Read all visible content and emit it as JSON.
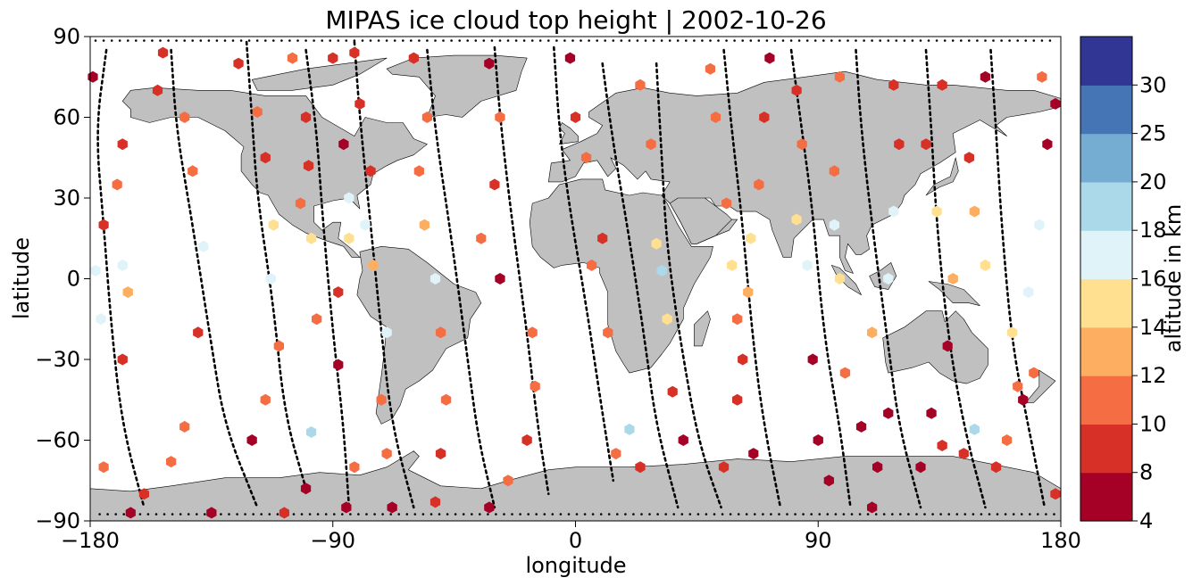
{
  "chart_data": {
    "type": "scatter",
    "title": "MIPAS ice cloud top height | 2002-10-26",
    "xlabel": "longitude",
    "ylabel": "latitude",
    "xlim": [
      -180,
      180
    ],
    "ylim": [
      -90,
      90
    ],
    "xticks": [
      -180,
      -90,
      0,
      90,
      180
    ],
    "yticks": [
      -90,
      -60,
      -30,
      0,
      30,
      60,
      90
    ],
    "grid": false,
    "colorbar": {
      "label": "altitude in km",
      "position": "right",
      "bounds": [
        4,
        8,
        10,
        12,
        14,
        16,
        18,
        20,
        25,
        30
      ],
      "tick_labels": [
        "4",
        "8",
        "10",
        "12",
        "14",
        "16",
        "18",
        "20",
        "25",
        "30"
      ],
      "colors": [
        "#a50026",
        "#d73027",
        "#f46d43",
        "#fdae61",
        "#fee090",
        "#e0f3f8",
        "#abd9e9",
        "#74add1",
        "#4575b4",
        "#313695"
      ]
    },
    "land_color": "#c0c0c0",
    "track_color": "#000000",
    "tracks": [
      {
        "points": [
          [
            -174,
            85
          ],
          [
            -178,
            55
          ],
          [
            -175,
            20
          ],
          [
            -172,
            -20
          ],
          [
            -168,
            -55
          ],
          [
            -160,
            -85
          ]
        ]
      },
      {
        "points": [
          [
            -150,
            85
          ],
          [
            -148,
            55
          ],
          [
            -142,
            20
          ],
          [
            -135,
            -25
          ],
          [
            -130,
            -55
          ],
          [
            -118,
            -85
          ]
        ]
      },
      {
        "points": [
          [
            -122,
            88
          ],
          [
            -120,
            60
          ],
          [
            -118,
            30
          ],
          [
            -112,
            -10
          ],
          [
            -108,
            -50
          ],
          [
            -100,
            -78
          ]
        ]
      },
      {
        "points": [
          [
            -100,
            85
          ],
          [
            -96,
            55
          ],
          [
            -94,
            25
          ],
          [
            -90,
            -20
          ],
          [
            -86,
            -55
          ],
          [
            -84,
            -85
          ]
        ]
      },
      {
        "points": [
          [
            -82,
            88
          ],
          [
            -80,
            60
          ],
          [
            -76,
            20
          ],
          [
            -72,
            -20
          ],
          [
            -68,
            -55
          ],
          [
            -60,
            -85
          ]
        ]
      },
      {
        "points": [
          [
            -55,
            85
          ],
          [
            -52,
            55
          ],
          [
            -46,
            15
          ],
          [
            -40,
            -30
          ],
          [
            -36,
            -60
          ],
          [
            -30,
            -85
          ]
        ]
      },
      {
        "points": [
          [
            -30,
            86
          ],
          [
            -28,
            60
          ],
          [
            -24,
            25
          ],
          [
            -18,
            -20
          ],
          [
            -14,
            -55
          ],
          [
            -10,
            -80
          ]
        ]
      },
      {
        "points": [
          [
            -8,
            86
          ],
          [
            -6,
            55
          ],
          [
            -2,
            25
          ],
          [
            4,
            -10
          ],
          [
            10,
            -50
          ],
          [
            14,
            -75
          ]
        ]
      },
      {
        "points": [
          [
            10,
            80
          ],
          [
            14,
            50
          ],
          [
            20,
            15
          ],
          [
            26,
            -25
          ],
          [
            30,
            -55
          ],
          [
            38,
            -85
          ]
        ]
      },
      {
        "points": [
          [
            30,
            80
          ],
          [
            32,
            45
          ],
          [
            34,
            10
          ],
          [
            40,
            -30
          ],
          [
            46,
            -62
          ],
          [
            54,
            -85
          ]
        ]
      },
      {
        "points": [
          [
            55,
            85
          ],
          [
            58,
            55
          ],
          [
            62,
            20
          ],
          [
            66,
            -25
          ],
          [
            70,
            -55
          ],
          [
            76,
            -85
          ]
        ]
      },
      {
        "points": [
          [
            80,
            85
          ],
          [
            84,
            55
          ],
          [
            88,
            25
          ],
          [
            92,
            -20
          ],
          [
            98,
            -55
          ],
          [
            102,
            -85
          ]
        ]
      },
      {
        "points": [
          [
            104,
            85
          ],
          [
            106,
            55
          ],
          [
            110,
            20
          ],
          [
            116,
            -25
          ],
          [
            120,
            -55
          ],
          [
            128,
            -85
          ]
        ]
      },
      {
        "points": [
          [
            130,
            85
          ],
          [
            132,
            55
          ],
          [
            134,
            20
          ],
          [
            138,
            -20
          ],
          [
            144,
            -55
          ],
          [
            152,
            -85
          ]
        ]
      },
      {
        "points": [
          [
            154,
            85
          ],
          [
            156,
            55
          ],
          [
            158,
            20
          ],
          [
            162,
            -25
          ],
          [
            168,
            -55
          ],
          [
            174,
            -85
          ]
        ]
      }
    ],
    "points": [
      {
        "x": -179,
        "y": 75,
        "v": 6
      },
      {
        "x": -168,
        "y": 50,
        "v": 9
      },
      {
        "x": -170,
        "y": 35,
        "v": 11
      },
      {
        "x": -175,
        "y": 20,
        "v": 9
      },
      {
        "x": -178,
        "y": 3,
        "v": 17
      },
      {
        "x": -176,
        "y": -15,
        "v": 17
      },
      {
        "x": -166,
        "y": -5,
        "v": 13
      },
      {
        "x": -168,
        "y": 5,
        "v": 17
      },
      {
        "x": -168,
        "y": -30,
        "v": 9
      },
      {
        "x": -175,
        "y": -70,
        "v": 11
      },
      {
        "x": -165,
        "y": -87,
        "v": 6
      },
      {
        "x": -153,
        "y": 84,
        "v": 9
      },
      {
        "x": -155,
        "y": 70,
        "v": 9
      },
      {
        "x": -160,
        "y": -80,
        "v": 9
      },
      {
        "x": -145,
        "y": 60,
        "v": 11
      },
      {
        "x": -142,
        "y": 40,
        "v": 11
      },
      {
        "x": -138,
        "y": 12,
        "v": 17
      },
      {
        "x": -140,
        "y": -20,
        "v": 9
      },
      {
        "x": -145,
        "y": -55,
        "v": 11
      },
      {
        "x": -150,
        "y": -68,
        "v": 11
      },
      {
        "x": -135,
        "y": -87,
        "v": 6
      },
      {
        "x": -125,
        "y": 80,
        "v": 9
      },
      {
        "x": -118,
        "y": 62,
        "v": 11
      },
      {
        "x": -115,
        "y": 45,
        "v": 9
      },
      {
        "x": -112,
        "y": 20,
        "v": 15
      },
      {
        "x": -113,
        "y": 0,
        "v": 17
      },
      {
        "x": -110,
        "y": -25,
        "v": 11
      },
      {
        "x": -115,
        "y": -45,
        "v": 11
      },
      {
        "x": -120,
        "y": -60,
        "v": 6
      },
      {
        "x": -108,
        "y": -87,
        "v": 9
      },
      {
        "x": -105,
        "y": 82,
        "v": 11
      },
      {
        "x": -100,
        "y": 60,
        "v": 9
      },
      {
        "x": -99,
        "y": 42,
        "v": 9
      },
      {
        "x": -102,
        "y": 28,
        "v": 11
      },
      {
        "x": -98,
        "y": 15,
        "v": 15
      },
      {
        "x": -96,
        "y": -15,
        "v": 11
      },
      {
        "x": -98,
        "y": -57,
        "v": 19
      },
      {
        "x": -100,
        "y": -78,
        "v": 6
      },
      {
        "x": -90,
        "y": 82,
        "v": 9
      },
      {
        "x": -86,
        "y": 50,
        "v": 6
      },
      {
        "x": -84,
        "y": 30,
        "v": 17
      },
      {
        "x": -84,
        "y": 15,
        "v": 15
      },
      {
        "x": -88,
        "y": -5,
        "v": 9
      },
      {
        "x": -88,
        "y": -32,
        "v": 6
      },
      {
        "x": -82,
        "y": -70,
        "v": 11
      },
      {
        "x": -85,
        "y": -85,
        "v": 6
      },
      {
        "x": -82,
        "y": 84,
        "v": 9
      },
      {
        "x": -80,
        "y": 65,
        "v": 9
      },
      {
        "x": -76,
        "y": 40,
        "v": 9
      },
      {
        "x": -78,
        "y": 20,
        "v": 17
      },
      {
        "x": -75,
        "y": 5,
        "v": 13
      },
      {
        "x": -70,
        "y": -20,
        "v": 17
      },
      {
        "x": -72,
        "y": -45,
        "v": 11
      },
      {
        "x": -70,
        "y": -65,
        "v": 11
      },
      {
        "x": -68,
        "y": -85,
        "v": 6
      },
      {
        "x": -60,
        "y": 82,
        "v": 9
      },
      {
        "x": -55,
        "y": 60,
        "v": 11
      },
      {
        "x": -58,
        "y": 40,
        "v": 11
      },
      {
        "x": -56,
        "y": 20,
        "v": 13
      },
      {
        "x": -52,
        "y": 0,
        "v": 17
      },
      {
        "x": -50,
        "y": -20,
        "v": 11
      },
      {
        "x": -48,
        "y": -45,
        "v": 11
      },
      {
        "x": -50,
        "y": -65,
        "v": 9
      },
      {
        "x": -52,
        "y": -83,
        "v": 9
      },
      {
        "x": -32,
        "y": 80,
        "v": 6
      },
      {
        "x": -28,
        "y": 60,
        "v": 11
      },
      {
        "x": -30,
        "y": 35,
        "v": 9
      },
      {
        "x": -35,
        "y": 15,
        "v": 11
      },
      {
        "x": -28,
        "y": 0,
        "v": 6
      },
      {
        "x": -16,
        "y": -20,
        "v": 11
      },
      {
        "x": -15,
        "y": -40,
        "v": 11
      },
      {
        "x": -18,
        "y": -60,
        "v": 9
      },
      {
        "x": -25,
        "y": -75,
        "v": 11
      },
      {
        "x": -32,
        "y": -85,
        "v": 6
      },
      {
        "x": -2,
        "y": 82,
        "v": 6
      },
      {
        "x": 0,
        "y": 60,
        "v": 9
      },
      {
        "x": 4,
        "y": 45,
        "v": 11
      },
      {
        "x": 10,
        "y": 15,
        "v": 9
      },
      {
        "x": 6,
        "y": 5,
        "v": 11
      },
      {
        "x": 12,
        "y": -20,
        "v": 11
      },
      {
        "x": 15,
        "y": -65,
        "v": 11
      },
      {
        "x": 20,
        "y": -56,
        "v": 19
      },
      {
        "x": 24,
        "y": -70,
        "v": 9
      },
      {
        "x": 24,
        "y": 72,
        "v": 11
      },
      {
        "x": 28,
        "y": 50,
        "v": 11
      },
      {
        "x": 30,
        "y": 13,
        "v": 15
      },
      {
        "x": 32,
        "y": 3,
        "v": 18
      },
      {
        "x": 34,
        "y": -15,
        "v": 15
      },
      {
        "x": 36,
        "y": -42,
        "v": 9
      },
      {
        "x": 40,
        "y": -60,
        "v": 6
      },
      {
        "x": 50,
        "y": 78,
        "v": 11
      },
      {
        "x": 52,
        "y": 60,
        "v": 11
      },
      {
        "x": 56,
        "y": 28,
        "v": 11
      },
      {
        "x": 58,
        "y": 5,
        "v": 15
      },
      {
        "x": 60,
        "y": -15,
        "v": 11
      },
      {
        "x": 60,
        "y": -45,
        "v": 9
      },
      {
        "x": 55,
        "y": -70,
        "v": 9
      },
      {
        "x": 72,
        "y": 82,
        "v": 6
      },
      {
        "x": 70,
        "y": 60,
        "v": 9
      },
      {
        "x": 68,
        "y": 35,
        "v": 11
      },
      {
        "x": 65,
        "y": 15,
        "v": 15
      },
      {
        "x": 64,
        "y": -5,
        "v": 13
      },
      {
        "x": 62,
        "y": -30,
        "v": 9
      },
      {
        "x": 66,
        "y": -65,
        "v": 6
      },
      {
        "x": 82,
        "y": 70,
        "v": 9
      },
      {
        "x": 84,
        "y": 50,
        "v": 11
      },
      {
        "x": 82,
        "y": 22,
        "v": 15
      },
      {
        "x": 86,
        "y": 5,
        "v": 17
      },
      {
        "x": 88,
        "y": -30,
        "v": 6
      },
      {
        "x": 90,
        "y": -60,
        "v": 6
      },
      {
        "x": 94,
        "y": -75,
        "v": 6
      },
      {
        "x": 98,
        "y": 75,
        "v": 11
      },
      {
        "x": 96,
        "y": 40,
        "v": 11
      },
      {
        "x": 96,
        "y": 20,
        "v": 17
      },
      {
        "x": 98,
        "y": 0,
        "v": 15
      },
      {
        "x": 100,
        "y": -35,
        "v": 11
      },
      {
        "x": 106,
        "y": -55,
        "v": 6
      },
      {
        "x": 112,
        "y": -70,
        "v": 6
      },
      {
        "x": 110,
        "y": -85,
        "v": 6
      },
      {
        "x": 118,
        "y": 72,
        "v": 9
      },
      {
        "x": 120,
        "y": 50,
        "v": 9
      },
      {
        "x": 118,
        "y": 25,
        "v": 17
      },
      {
        "x": 116,
        "y": 0,
        "v": 17
      },
      {
        "x": 110,
        "y": -20,
        "v": 13
      },
      {
        "x": 116,
        "y": -50,
        "v": 6
      },
      {
        "x": 128,
        "y": -70,
        "v": 6
      },
      {
        "x": 136,
        "y": 72,
        "v": 9
      },
      {
        "x": 130,
        "y": 50,
        "v": 9
      },
      {
        "x": 134,
        "y": 25,
        "v": 15
      },
      {
        "x": 140,
        "y": 0,
        "v": 13
      },
      {
        "x": 138,
        "y": -25,
        "v": 6
      },
      {
        "x": 132,
        "y": -50,
        "v": 6
      },
      {
        "x": 136,
        "y": -62,
        "v": 9
      },
      {
        "x": 148,
        "y": -56,
        "v": 19
      },
      {
        "x": 144,
        "y": -65,
        "v": 9
      },
      {
        "x": 152,
        "y": 75,
        "v": 6
      },
      {
        "x": 146,
        "y": 45,
        "v": 9
      },
      {
        "x": 148,
        "y": 25,
        "v": 13
      },
      {
        "x": 152,
        "y": 5,
        "v": 15
      },
      {
        "x": 162,
        "y": -20,
        "v": 15
      },
      {
        "x": 164,
        "y": -40,
        "v": 11
      },
      {
        "x": 160,
        "y": -60,
        "v": 11
      },
      {
        "x": 156,
        "y": -70,
        "v": 9
      },
      {
        "x": 173,
        "y": 75,
        "v": 11
      },
      {
        "x": 175,
        "y": 50,
        "v": 6
      },
      {
        "x": 178,
        "y": 65,
        "v": 6
      },
      {
        "x": 172,
        "y": 20,
        "v": 17
      },
      {
        "x": 168,
        "y": -5,
        "v": 17
      },
      {
        "x": 170,
        "y": -35,
        "v": 11
      },
      {
        "x": 166,
        "y": -45,
        "v": 6
      },
      {
        "x": 178,
        "y": -80,
        "v": 9
      }
    ]
  }
}
